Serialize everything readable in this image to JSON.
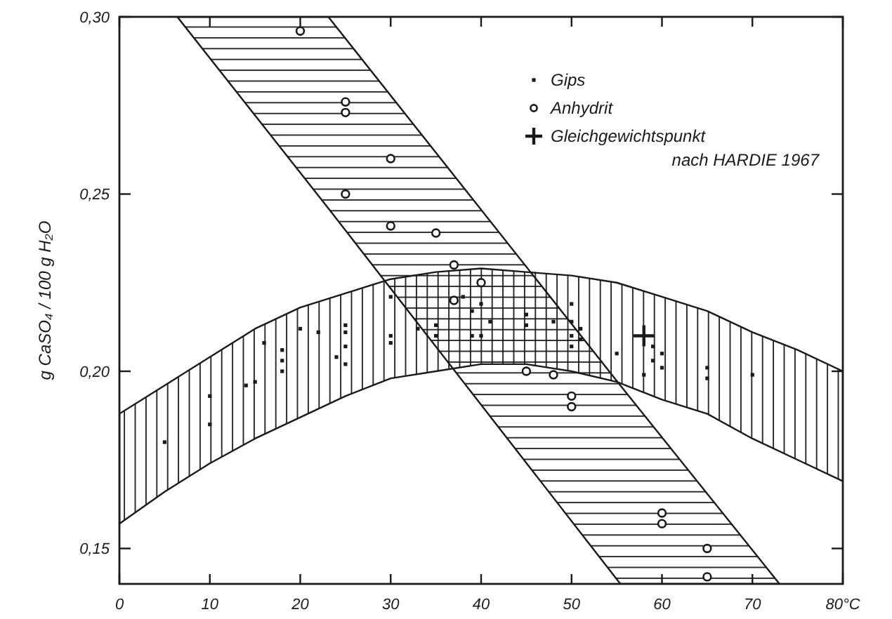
{
  "chart_data": {
    "type": "scatter",
    "ylabel": "g CaSO₄ / 100 g H₂O",
    "xlim": [
      0,
      80
    ],
    "ylim": [
      0.14,
      0.3
    ],
    "xticks": [
      0,
      10,
      20,
      30,
      40,
      50,
      60,
      70,
      {
        "value": 80,
        "label": "80°C"
      }
    ],
    "yticks": [
      {
        "value": 0.15,
        "label": "0,15"
      },
      {
        "value": 0.2,
        "label": "0,20"
      },
      {
        "value": 0.25,
        "label": "0,25"
      },
      {
        "value": 0.3,
        "label": "0,30"
      }
    ],
    "legend": "top right",
    "series": [
      {
        "type": "area",
        "color": "#1a1a1a",
        "x": [
          0,
          5,
          10,
          15,
          20,
          25,
          30,
          35,
          40,
          45,
          50,
          55,
          60,
          65,
          70,
          75,
          80
        ],
        "values": [
          null,
          null,
          null,
          null,
          null,
          null,
          null,
          null,
          null,
          null,
          null,
          null,
          null,
          null,
          null,
          null,
          null
        ],
        "lower": [
          0.157,
          0.166,
          0.174,
          0.181,
          0.187,
          0.193,
          0.198,
          0.2,
          0.202,
          0.202,
          0.2,
          0.197,
          0.192,
          0.188,
          0.181,
          0.175,
          0.169
        ],
        "upper": [
          0.188,
          0.196,
          0.204,
          0.212,
          0.218,
          0.222,
          0.226,
          0.228,
          0.229,
          0.228,
          0.227,
          0.225,
          0.221,
          0.217,
          0.211,
          0.206,
          0.2
        ]
      },
      {
        "type": "area",
        "color": "#1a1a1a",
        "x": [
          6.4,
          23.1,
          55.4,
          73
        ],
        "values": [
          null,
          null,
          null,
          null
        ],
        "lower": [
          0.3,
          0.246,
          0.14,
          0.14
        ],
        "upper": [
          0.3,
          0.3,
          0.196,
          0.14
        ]
      },
      {
        "name": "Gips",
        "color": "#1a1a1a",
        "marker": "square",
        "x": [
          5,
          10,
          10,
          14,
          15,
          16,
          18,
          18,
          18,
          20,
          22,
          25,
          25,
          25,
          24,
          25,
          30,
          30,
          30,
          33,
          35,
          35,
          38,
          39,
          39,
          40,
          40,
          41,
          45,
          45,
          48,
          50,
          50,
          50,
          50,
          51,
          51,
          55,
          59,
          60,
          59,
          60,
          58,
          65,
          65,
          70
        ],
        "values": [
          0.18,
          0.193,
          0.185,
          0.196,
          0.197,
          0.208,
          0.206,
          0.203,
          0.2,
          0.212,
          0.211,
          0.213,
          0.211,
          0.207,
          0.204,
          0.202,
          0.221,
          0.21,
          0.208,
          0.212,
          0.213,
          0.21,
          0.221,
          0.217,
          0.21,
          0.219,
          0.21,
          0.214,
          0.216,
          0.213,
          0.214,
          0.219,
          0.214,
          0.21,
          0.207,
          0.212,
          0.209,
          0.205,
          0.207,
          0.205,
          0.203,
          0.201,
          0.199,
          0.201,
          0.198,
          0.199
        ]
      },
      {
        "name": "Anhydrit",
        "color": "#1a1a1a",
        "marker": "circle",
        "x": [
          20,
          25,
          25,
          25,
          30,
          30,
          35,
          37,
          40,
          37,
          45,
          48,
          50,
          50,
          60,
          60,
          65,
          65
        ],
        "values": [
          0.296,
          0.276,
          0.273,
          0.25,
          0.26,
          0.241,
          0.239,
          0.23,
          0.225,
          0.22,
          0.2,
          0.199,
          0.193,
          0.19,
          0.16,
          0.157,
          0.15,
          0.142
        ]
      },
      {
        "name": "Gleichgewichtspunkt\nnach HARDIE 1967",
        "color": "#1a1a1a",
        "marker": "cross",
        "x": [
          58
        ],
        "values": [
          0.21
        ]
      }
    ]
  }
}
